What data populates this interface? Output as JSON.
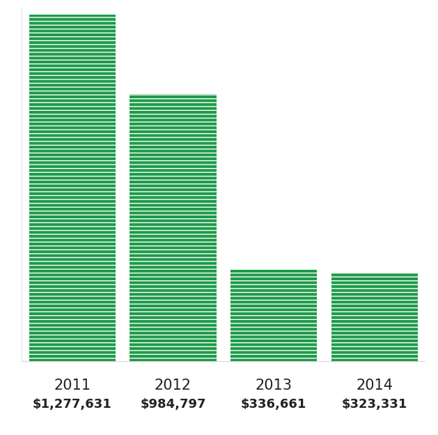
{
  "chart_data": {
    "type": "bar",
    "categories": [
      "2011",
      "2012",
      "2013",
      "2014"
    ],
    "values": [
      1277631,
      984797,
      336661,
      323331
    ],
    "value_labels": [
      "$1,277,631",
      "$984,797",
      "$336,661",
      "$323,331"
    ],
    "data_labels": true,
    "color": "#1e9b4a",
    "ylim": [
      0,
      1300000
    ],
    "tick_labels": "x",
    "grid": false
  }
}
